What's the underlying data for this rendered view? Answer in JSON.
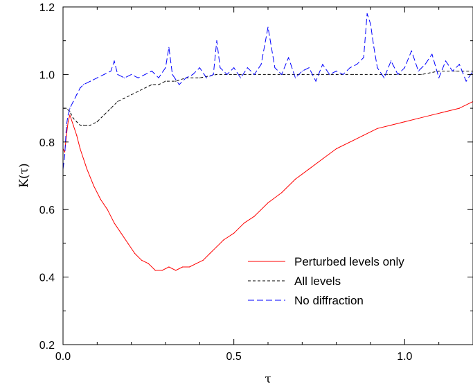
{
  "chart_data": {
    "type": "line",
    "title": "",
    "xlabel": "τ",
    "ylabel": "K(τ)",
    "xlim": [
      0.0,
      1.2
    ],
    "ylim": [
      0.2,
      1.2
    ],
    "x_ticks": [
      "0.0",
      "0.5",
      "1.0"
    ],
    "y_ticks": [
      "0.2",
      "0.4",
      "0.6",
      "0.8",
      "1.0",
      "1.2"
    ],
    "grid": false,
    "legend_position": "lower-right",
    "series": [
      {
        "name": "Perturbed levels only",
        "color": "#ff0000",
        "style": "solid",
        "x": [
          0.0,
          0.005,
          0.01,
          0.015,
          0.02,
          0.03,
          0.04,
          0.05,
          0.07,
          0.09,
          0.11,
          0.13,
          0.15,
          0.17,
          0.19,
          0.21,
          0.23,
          0.25,
          0.27,
          0.29,
          0.31,
          0.33,
          0.35,
          0.37,
          0.39,
          0.41,
          0.43,
          0.45,
          0.47,
          0.5,
          0.53,
          0.56,
          0.6,
          0.64,
          0.68,
          0.72,
          0.76,
          0.8,
          0.84,
          0.88,
          0.92,
          0.96,
          1.0,
          1.04,
          1.08,
          1.12,
          1.16,
          1.2
        ],
        "values": [
          0.78,
          0.77,
          0.82,
          0.86,
          0.88,
          0.85,
          0.82,
          0.78,
          0.72,
          0.67,
          0.63,
          0.6,
          0.56,
          0.53,
          0.5,
          0.47,
          0.45,
          0.44,
          0.42,
          0.42,
          0.43,
          0.42,
          0.43,
          0.43,
          0.44,
          0.45,
          0.47,
          0.49,
          0.51,
          0.53,
          0.56,
          0.58,
          0.62,
          0.65,
          0.69,
          0.72,
          0.75,
          0.78,
          0.8,
          0.82,
          0.84,
          0.85,
          0.86,
          0.87,
          0.88,
          0.89,
          0.9,
          0.92
        ]
      },
      {
        "name": "All levels",
        "color": "#000000",
        "style": "dotted",
        "x": [
          0.0,
          0.005,
          0.01,
          0.02,
          0.03,
          0.04,
          0.05,
          0.06,
          0.07,
          0.08,
          0.1,
          0.12,
          0.14,
          0.16,
          0.18,
          0.2,
          0.22,
          0.24,
          0.26,
          0.28,
          0.3,
          0.33,
          0.36,
          0.4,
          0.45,
          0.5,
          0.55,
          0.6,
          0.65,
          0.7,
          0.75,
          0.8,
          0.85,
          0.9,
          0.95,
          1.0,
          1.05,
          1.1,
          1.15,
          1.2
        ],
        "values": [
          0.9,
          0.9,
          0.9,
          0.89,
          0.87,
          0.86,
          0.85,
          0.85,
          0.85,
          0.85,
          0.86,
          0.88,
          0.9,
          0.92,
          0.93,
          0.94,
          0.95,
          0.96,
          0.97,
          0.97,
          0.98,
          0.98,
          0.99,
          0.99,
          1.0,
          1.0,
          1.0,
          1.0,
          1.0,
          1.0,
          1.0,
          1.0,
          1.0,
          1.0,
          1.0,
          1.0,
          1.0,
          1.01,
          1.01,
          1.01
        ]
      },
      {
        "name": "No diffraction",
        "color": "#0000ff",
        "style": "dashed",
        "x": [
          0.0,
          0.005,
          0.01,
          0.015,
          0.02,
          0.03,
          0.04,
          0.05,
          0.06,
          0.08,
          0.1,
          0.12,
          0.14,
          0.15,
          0.16,
          0.18,
          0.2,
          0.22,
          0.24,
          0.26,
          0.28,
          0.3,
          0.31,
          0.32,
          0.34,
          0.36,
          0.38,
          0.4,
          0.42,
          0.44,
          0.45,
          0.46,
          0.48,
          0.5,
          0.52,
          0.54,
          0.56,
          0.58,
          0.6,
          0.62,
          0.64,
          0.66,
          0.68,
          0.7,
          0.72,
          0.74,
          0.76,
          0.78,
          0.8,
          0.82,
          0.84,
          0.86,
          0.88,
          0.89,
          0.9,
          0.91,
          0.92,
          0.94,
          0.96,
          0.98,
          1.0,
          1.02,
          1.04,
          1.06,
          1.08,
          1.1,
          1.12,
          1.14,
          1.16,
          1.18,
          1.2
        ],
        "values": [
          0.72,
          0.76,
          0.85,
          0.88,
          0.9,
          0.92,
          0.94,
          0.96,
          0.97,
          0.98,
          0.99,
          1.0,
          1.01,
          1.04,
          1.0,
          0.99,
          1.0,
          0.99,
          1.0,
          1.01,
          0.99,
          1.02,
          1.08,
          1.0,
          0.97,
          0.99,
          1.0,
          1.02,
          0.99,
          1.0,
          1.1,
          1.02,
          1.0,
          1.02,
          0.99,
          1.02,
          1.0,
          1.03,
          1.14,
          1.02,
          1.0,
          1.05,
          0.99,
          1.01,
          1.02,
          0.98,
          1.03,
          1.0,
          1.01,
          1.0,
          1.02,
          1.03,
          1.05,
          1.18,
          1.15,
          1.08,
          1.02,
          0.99,
          1.04,
          1.0,
          1.02,
          1.07,
          1.01,
          1.03,
          1.06,
          0.99,
          1.04,
          1.01,
          1.03,
          0.98,
          1.01
        ]
      }
    ]
  }
}
